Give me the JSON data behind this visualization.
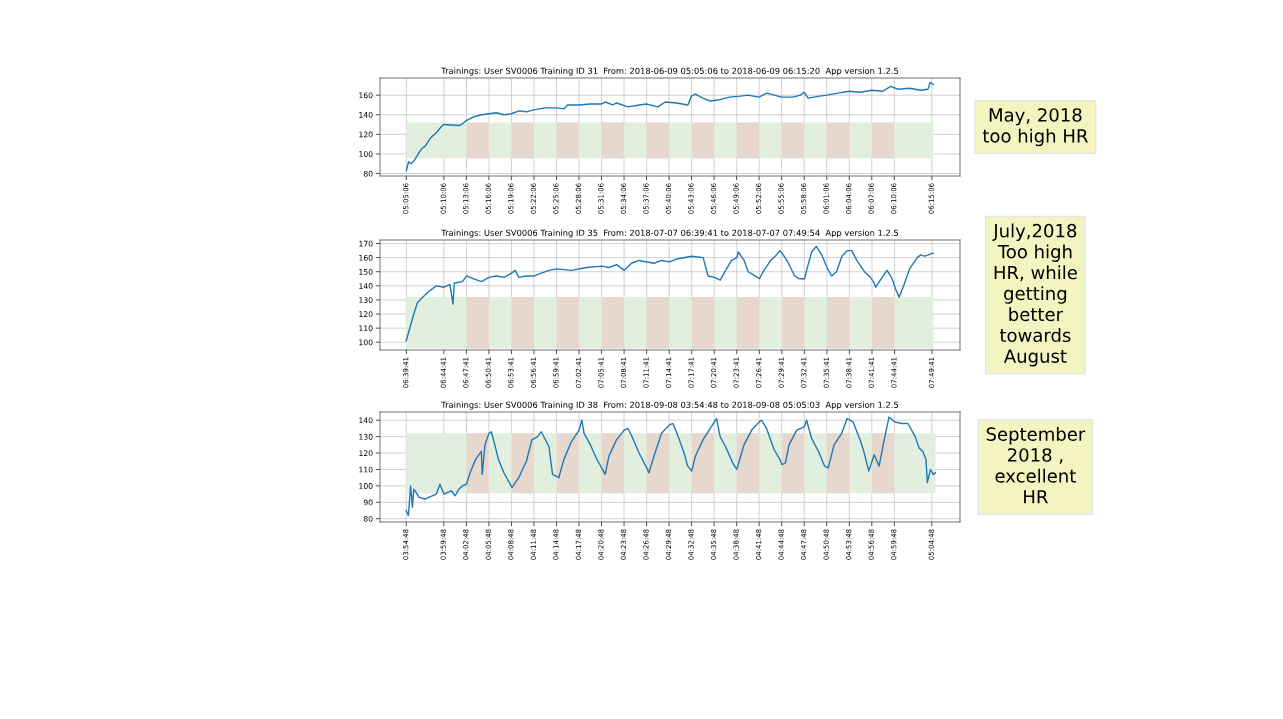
{
  "chart_data": [
    {
      "type": "line",
      "title": "Trainings: User SV0006 Training ID 31  From: 2018-06-09 05:05:06 to 2018-06-09 06:15:20  App version 1.2.5",
      "annotations": [
        "May, 2018\ntoo high HR"
      ],
      "grid": true,
      "xlim": [
        5.0265,
        6.3142
      ],
      "ylim": [
        77.5,
        177.5
      ],
      "yticks": [
        80,
        100,
        120,
        140,
        160
      ],
      "xticks": [
        {
          "value": 5.085,
          "label": "05:05:06"
        },
        {
          "value": 5.1683,
          "label": "05:10:06"
        },
        {
          "value": 5.2183,
          "label": "05:13:06"
        },
        {
          "value": 5.2683,
          "label": "05:16:06"
        },
        {
          "value": 5.3183,
          "label": "05:19:06"
        },
        {
          "value": 5.3683,
          "label": "05:22:06"
        },
        {
          "value": 5.4183,
          "label": "05:25:06"
        },
        {
          "value": 5.4683,
          "label": "05:28:06"
        },
        {
          "value": 5.5183,
          "label": "05:31:06"
        },
        {
          "value": 5.5683,
          "label": "05:34:06"
        },
        {
          "value": 5.6183,
          "label": "05:37:06"
        },
        {
          "value": 5.6683,
          "label": "05:40:06"
        },
        {
          "value": 5.7183,
          "label": "05:43:06"
        },
        {
          "value": 5.7683,
          "label": "05:46:06"
        },
        {
          "value": 5.8183,
          "label": "05:49:06"
        },
        {
          "value": 5.8683,
          "label": "05:52:06"
        },
        {
          "value": 5.9183,
          "label": "05:55:06"
        },
        {
          "value": 5.9683,
          "label": "05:58:06"
        },
        {
          "value": 6.0183,
          "label": "06:01:06"
        },
        {
          "value": 6.0683,
          "label": "06:04:06"
        },
        {
          "value": 6.1183,
          "label": "06:07:06"
        },
        {
          "value": 6.1683,
          "label": "06:10:06"
        },
        {
          "value": 6.2517,
          "label": "06:15:06"
        }
      ],
      "bands": [
        {
          "axis": "y",
          "from": 95.5,
          "to": 132,
          "color": "#e2efdf"
        },
        {
          "axis": "x",
          "from": 5.2183,
          "to": 5.2683,
          "color": "#e6d8cc"
        },
        {
          "axis": "x",
          "from": 5.3183,
          "to": 5.3683,
          "color": "#e6d8cc"
        },
        {
          "axis": "x",
          "from": 5.4183,
          "to": 5.4683,
          "color": "#e6d8cc"
        },
        {
          "axis": "x",
          "from": 5.5183,
          "to": 5.5683,
          "color": "#e6d8cc"
        },
        {
          "axis": "x",
          "from": 5.6183,
          "to": 5.6683,
          "color": "#e6d8cc"
        },
        {
          "axis": "x",
          "from": 5.7183,
          "to": 5.7683,
          "color": "#e6d8cc"
        },
        {
          "axis": "x",
          "from": 5.8183,
          "to": 5.8683,
          "color": "#e6d8cc"
        },
        {
          "axis": "x",
          "from": 5.9183,
          "to": 5.9683,
          "color": "#e6d8cc"
        },
        {
          "axis": "x",
          "from": 6.0183,
          "to": 6.0683,
          "color": "#e6d8cc"
        },
        {
          "axis": "x",
          "from": 6.1183,
          "to": 6.1683,
          "color": "#e6d8cc"
        }
      ],
      "series": [
        {
          "color": "#1f77b4",
          "x": [
            5.085,
            5.09,
            5.095,
            5.102,
            5.118,
            5.127,
            5.138,
            5.152,
            5.163,
            5.168,
            5.202,
            5.21,
            5.218,
            5.227,
            5.235,
            5.252,
            5.268,
            5.285,
            5.302,
            5.318,
            5.335,
            5.352,
            5.368,
            5.393,
            5.418,
            5.435,
            5.443,
            5.468,
            5.493,
            5.518,
            5.527,
            5.543,
            5.552,
            5.577,
            5.602,
            5.618,
            5.643,
            5.66,
            5.685,
            5.71,
            5.718,
            5.727,
            5.743,
            5.76,
            5.777,
            5.802,
            5.827,
            5.843,
            5.868,
            5.885,
            5.902,
            5.918,
            5.943,
            5.96,
            5.968,
            5.977,
            6.002,
            6.018,
            6.043,
            6.068,
            6.093,
            6.118,
            6.143,
            6.16,
            6.177,
            6.202,
            6.227,
            6.243,
            6.248,
            6.255
          ],
          "values": [
            83,
            92,
            90,
            93,
            105,
            108,
            116,
            122,
            128,
            130,
            129,
            131,
            134,
            136,
            138,
            140,
            141,
            142,
            140,
            141,
            144,
            143,
            145,
            147,
            147,
            146,
            150,
            150,
            151,
            151,
            153,
            150,
            152,
            148,
            150,
            151,
            148,
            153,
            152,
            150,
            159,
            161,
            157,
            154,
            155,
            158,
            159,
            160,
            158,
            162,
            160,
            158,
            158,
            160,
            163,
            157,
            159,
            160,
            162,
            164,
            163,
            165,
            164,
            169,
            166,
            167,
            165,
            166,
            173,
            171
          ]
        }
      ]
    },
    {
      "type": "line",
      "title": "Trainings: User SV0006 Training ID 35  From: 2018-07-07 06:39:41 to 2018-07-07 07:49:54  App version 1.2.5",
      "annotations": [
        "July,2018\nToo high\nHR, while\ngetting\nbetter\ntowards\nAugust"
      ],
      "grid": true,
      "xlim": [
        6.603,
        7.89
      ],
      "ylim": [
        94.5,
        172.5
      ],
      "yticks": [
        100,
        110,
        120,
        130,
        140,
        150,
        160,
        170
      ],
      "xticks": [
        {
          "value": 6.6614,
          "label": "06:39:41"
        },
        {
          "value": 6.7447,
          "label": "06:44:41"
        },
        {
          "value": 6.7947,
          "label": "06:47:41"
        },
        {
          "value": 6.8447,
          "label": "06:50:41"
        },
        {
          "value": 6.8947,
          "label": "06:53:41"
        },
        {
          "value": 6.9447,
          "label": "06:56:41"
        },
        {
          "value": 6.9947,
          "label": "06:59:41"
        },
        {
          "value": 7.0447,
          "label": "07:02:41"
        },
        {
          "value": 7.0947,
          "label": "07:05:41"
        },
        {
          "value": 7.1447,
          "label": "07:08:41"
        },
        {
          "value": 7.1947,
          "label": "07:11:41"
        },
        {
          "value": 7.2447,
          "label": "07:14:41"
        },
        {
          "value": 7.2947,
          "label": "07:17:41"
        },
        {
          "value": 7.3447,
          "label": "07:20:41"
        },
        {
          "value": 7.3947,
          "label": "07:23:41"
        },
        {
          "value": 7.4447,
          "label": "07:26:41"
        },
        {
          "value": 7.4947,
          "label": "07:29:41"
        },
        {
          "value": 7.5447,
          "label": "07:32:41"
        },
        {
          "value": 7.5947,
          "label": "07:35:41"
        },
        {
          "value": 7.6447,
          "label": "07:38:41"
        },
        {
          "value": 7.6947,
          "label": "07:41:41"
        },
        {
          "value": 7.7447,
          "label": "07:44:41"
        },
        {
          "value": 7.8281,
          "label": "07:49:41"
        }
      ],
      "bands": [
        {
          "axis": "y",
          "from": 95.5,
          "to": 132,
          "color": "#e2efdf"
        },
        {
          "axis": "x",
          "from": 6.7947,
          "to": 6.8447,
          "color": "#e6d8cc"
        },
        {
          "axis": "x",
          "from": 6.8947,
          "to": 6.9447,
          "color": "#e6d8cc"
        },
        {
          "axis": "x",
          "from": 6.9947,
          "to": 7.0447,
          "color": "#e6d8cc"
        },
        {
          "axis": "x",
          "from": 7.0947,
          "to": 7.1447,
          "color": "#e6d8cc"
        },
        {
          "axis": "x",
          "from": 7.1947,
          "to": 7.2447,
          "color": "#e6d8cc"
        },
        {
          "axis": "x",
          "from": 7.2947,
          "to": 7.3447,
          "color": "#e6d8cc"
        },
        {
          "axis": "x",
          "from": 7.3947,
          "to": 7.4447,
          "color": "#e6d8cc"
        },
        {
          "axis": "x",
          "from": 7.4947,
          "to": 7.5447,
          "color": "#e6d8cc"
        },
        {
          "axis": "x",
          "from": 7.5947,
          "to": 7.6447,
          "color": "#e6d8cc"
        },
        {
          "axis": "x",
          "from": 7.6947,
          "to": 7.7447,
          "color": "#e6d8cc"
        }
      ],
      "series": [
        {
          "color": "#1f77b4",
          "x": [
            6.661,
            6.67,
            6.678,
            6.686,
            6.695,
            6.711,
            6.728,
            6.745,
            6.758,
            6.765,
            6.768,
            6.786,
            6.795,
            6.811,
            6.828,
            6.845,
            6.861,
            6.878,
            6.895,
            6.903,
            6.911,
            6.928,
            6.945,
            6.961,
            6.978,
            6.995,
            7.028,
            7.061,
            7.095,
            7.111,
            7.128,
            7.145,
            7.161,
            7.178,
            7.211,
            7.228,
            7.245,
            7.261,
            7.295,
            7.32,
            7.331,
            7.345,
            7.358,
            7.37,
            7.383,
            7.395,
            7.398,
            7.411,
            7.42,
            7.431,
            7.445,
            7.453,
            7.47,
            7.483,
            7.49,
            7.5,
            7.511,
            7.523,
            7.533,
            7.545,
            7.553,
            7.561,
            7.571,
            7.583,
            7.595,
            7.605,
            7.616,
            7.628,
            7.64,
            7.65,
            7.661,
            7.678,
            7.691,
            7.698,
            7.703,
            7.715,
            7.728,
            7.738,
            7.748,
            7.755,
            7.765,
            7.778,
            7.795,
            7.803,
            7.811,
            7.82,
            7.828,
            7.831
          ],
          "values": [
            101,
            111,
            120,
            128,
            131,
            136,
            140,
            139,
            141,
            127,
            142,
            143,
            147,
            145,
            143,
            146,
            147,
            146,
            149,
            151,
            146,
            147,
            147,
            149,
            151,
            152,
            151,
            153,
            154,
            153,
            155,
            151,
            156,
            158,
            156,
            158,
            157,
            159,
            161,
            160,
            147,
            146,
            144,
            151,
            158,
            160,
            164,
            158,
            150,
            148,
            145,
            150,
            158,
            162,
            165,
            161,
            155,
            147,
            145,
            145,
            155,
            164,
            168,
            162,
            153,
            147,
            150,
            161,
            165,
            165,
            158,
            150,
            146,
            143,
            139,
            145,
            151,
            146,
            137,
            132,
            140,
            152,
            160,
            162,
            161,
            162,
            163,
            163
          ]
        }
      ]
    },
    {
      "type": "line",
      "title": "Trainings: User SV0006 Training ID 38  From: 2018-09-08 03:54:48 to 2018-09-08 05:05:03  App version 1.2.5",
      "annotations": [
        "September\n2018 ,\nexcellent\nHR"
      ],
      "grid": true,
      "xlim": [
        3.855,
        5.1425
      ],
      "ylim": [
        78,
        145
      ],
      "yticks": [
        80,
        90,
        100,
        110,
        120,
        130,
        140
      ],
      "xticks": [
        {
          "value": 3.9133,
          "label": "03:54:48"
        },
        {
          "value": 3.9967,
          "label": "03:59:48"
        },
        {
          "value": 4.0467,
          "label": "04:02:48"
        },
        {
          "value": 4.0967,
          "label": "04:05:48"
        },
        {
          "value": 4.1467,
          "label": "04:08:48"
        },
        {
          "value": 4.1967,
          "label": "04:11:48"
        },
        {
          "value": 4.2467,
          "label": "04:14:48"
        },
        {
          "value": 4.2967,
          "label": "04:17:48"
        },
        {
          "value": 4.3467,
          "label": "04:20:48"
        },
        {
          "value": 4.3967,
          "label": "04:23:48"
        },
        {
          "value": 4.4467,
          "label": "04:26:48"
        },
        {
          "value": 4.4967,
          "label": "04:29:48"
        },
        {
          "value": 4.5467,
          "label": "04:32:48"
        },
        {
          "value": 4.5967,
          "label": "04:35:48"
        },
        {
          "value": 4.6467,
          "label": "04:38:48"
        },
        {
          "value": 4.6967,
          "label": "04:41:48"
        },
        {
          "value": 4.7467,
          "label": "04:44:48"
        },
        {
          "value": 4.7967,
          "label": "04:47:48"
        },
        {
          "value": 4.8467,
          "label": "04:50:48"
        },
        {
          "value": 4.8967,
          "label": "04:53:48"
        },
        {
          "value": 4.9467,
          "label": "04:56:48"
        },
        {
          "value": 4.9967,
          "label": "04:59:48"
        },
        {
          "value": 5.08,
          "label": "05:04:48"
        }
      ],
      "bands": [
        {
          "axis": "y",
          "from": 95.5,
          "to": 132,
          "color": "#e2efdf"
        },
        {
          "axis": "x",
          "from": 4.0467,
          "to": 4.0967,
          "color": "#e6d8cc"
        },
        {
          "axis": "x",
          "from": 4.1467,
          "to": 4.1967,
          "color": "#e6d8cc"
        },
        {
          "axis": "x",
          "from": 4.2467,
          "to": 4.2967,
          "color": "#e6d8cc"
        },
        {
          "axis": "x",
          "from": 4.3467,
          "to": 4.3967,
          "color": "#e6d8cc"
        },
        {
          "axis": "x",
          "from": 4.4467,
          "to": 4.4967,
          "color": "#e6d8cc"
        },
        {
          "axis": "x",
          "from": 4.5467,
          "to": 4.5967,
          "color": "#e6d8cc"
        },
        {
          "axis": "x",
          "from": 4.6467,
          "to": 4.6967,
          "color": "#e6d8cc"
        },
        {
          "axis": "x",
          "from": 4.7467,
          "to": 4.7967,
          "color": "#e6d8cc"
        },
        {
          "axis": "x",
          "from": 4.8467,
          "to": 4.8967,
          "color": "#e6d8cc"
        },
        {
          "axis": "x",
          "from": 4.9467,
          "to": 4.9967,
          "color": "#e6d8cc"
        }
      ],
      "series": [
        {
          "color": "#1f77b4",
          "x": [
            3.913,
            3.918,
            3.923,
            3.927,
            3.93,
            3.935,
            3.942,
            3.955,
            3.963,
            3.98,
            3.988,
            3.997,
            4.013,
            4.022,
            4.03,
            4.038,
            4.047,
            4.055,
            4.067,
            4.077,
            4.08,
            4.082,
            4.088,
            4.097,
            4.102,
            4.11,
            4.118,
            4.13,
            4.148,
            4.163,
            4.18,
            4.192,
            4.205,
            4.213,
            4.23,
            4.238,
            4.252,
            4.263,
            4.28,
            4.297,
            4.303,
            4.308,
            4.322,
            4.335,
            4.347,
            4.355,
            4.363,
            4.38,
            4.397,
            4.405,
            4.413,
            4.43,
            4.447,
            4.452,
            4.463,
            4.48,
            4.497,
            4.505,
            4.513,
            4.53,
            4.538,
            4.547,
            4.555,
            4.572,
            4.588,
            4.602,
            4.61,
            4.622,
            4.638,
            4.647,
            4.663,
            4.68,
            4.697,
            4.702,
            4.713,
            4.73,
            4.743,
            4.747,
            4.755,
            4.763,
            4.78,
            4.797,
            4.802,
            4.813,
            4.83,
            4.842,
            4.85,
            4.863,
            4.88,
            4.892,
            4.905,
            4.922,
            4.93,
            4.94,
            4.952,
            4.963,
            4.972,
            4.985,
            4.997,
            5.013,
            5.027,
            5.043,
            5.052,
            5.06,
            5.067,
            5.07,
            5.077,
            5.083,
            5.088
          ],
          "values": [
            85,
            82,
            100,
            87,
            98,
            96,
            93,
            92,
            93,
            95,
            101,
            95,
            97,
            94,
            98,
            100,
            101,
            108,
            116,
            120,
            121,
            107,
            125,
            132,
            133,
            125,
            116,
            108,
            99,
            105,
            115,
            128,
            130,
            133,
            124,
            107,
            105,
            116,
            127,
            134,
            140,
            132,
            125,
            117,
            111,
            107,
            118,
            128,
            134,
            135,
            131,
            120,
            111,
            108,
            118,
            132,
            137,
            138,
            133,
            120,
            112,
            109,
            118,
            128,
            135,
            141,
            130,
            124,
            114,
            110,
            125,
            134,
            139,
            140,
            135,
            122,
            116,
            113,
            114,
            125,
            134,
            136,
            140,
            129,
            120,
            112,
            111,
            125,
            132,
            141,
            139,
            127,
            120,
            109,
            119,
            112,
            125,
            142,
            139,
            138,
            138,
            130,
            123,
            121,
            116,
            102,
            110,
            107,
            108
          ]
        }
      ]
    }
  ]
}
